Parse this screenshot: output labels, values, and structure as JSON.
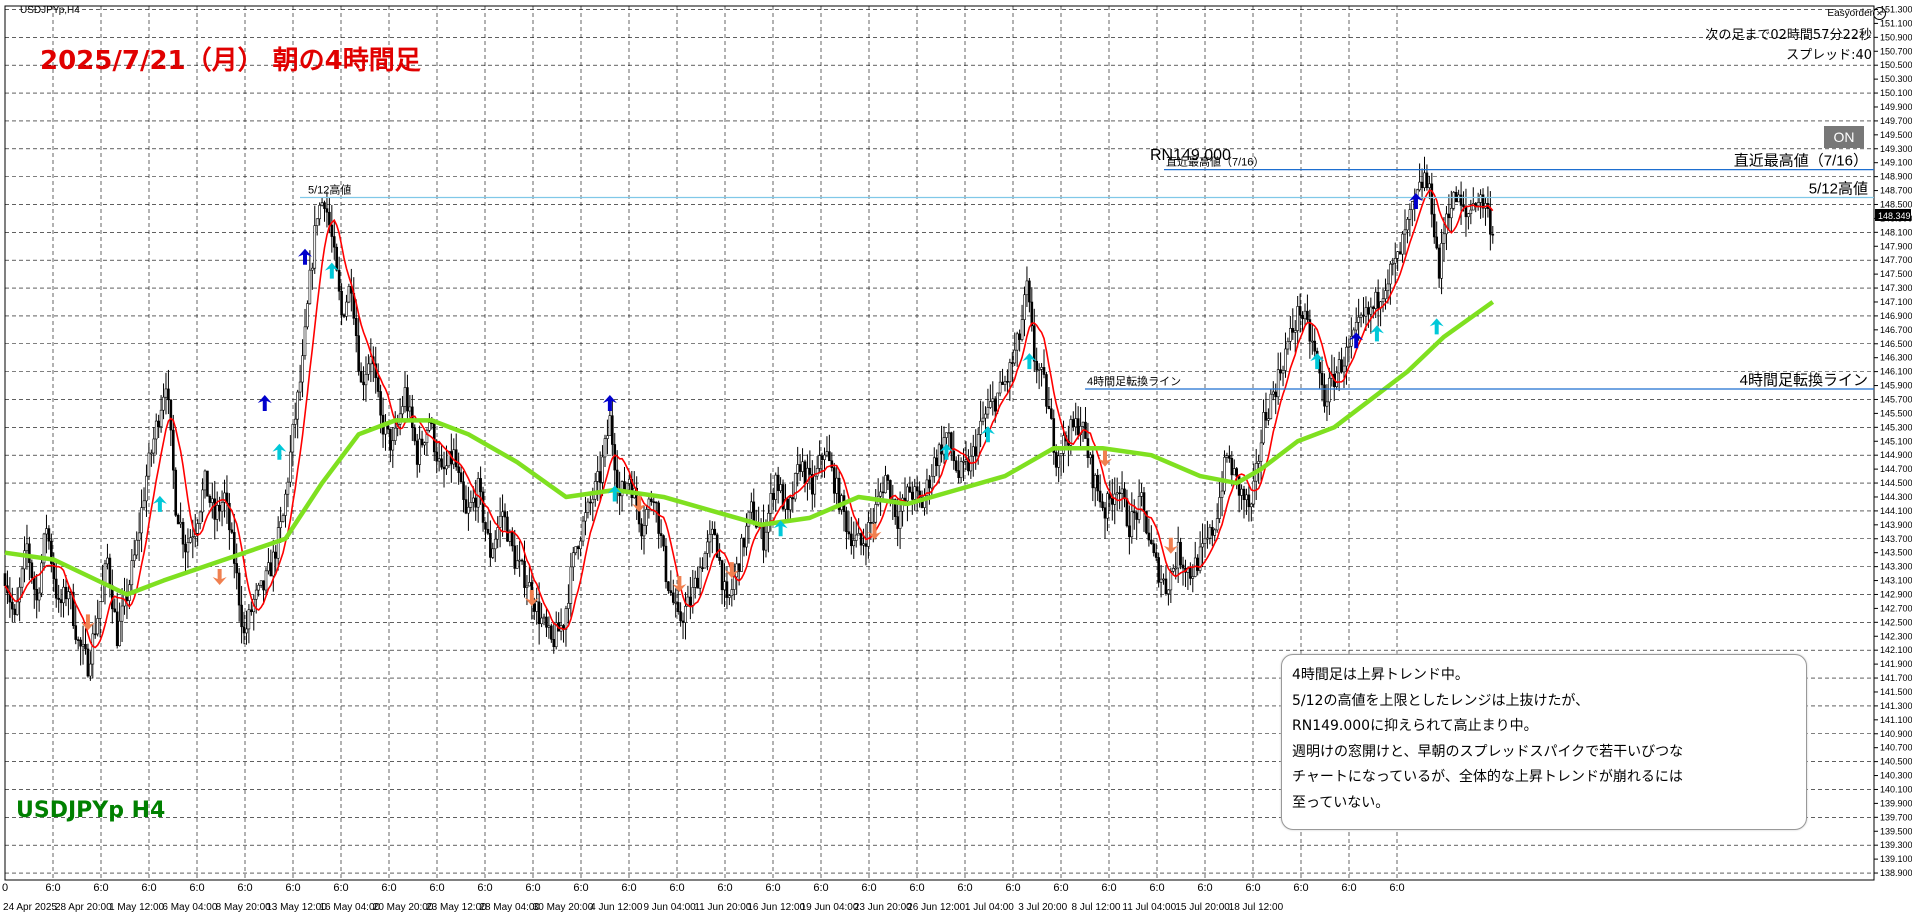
{
  "window": {
    "title": "USDJPYp,H4"
  },
  "heading": "2025/7/21（月） 朝の4時間足",
  "symbol_label": "USDJPYp H4",
  "ea_panel": {
    "name": "Easyorder",
    "countdown": "次の足まで02時間57分22秒",
    "spread": "スプレッド:40",
    "on_button": "ON"
  },
  "note": {
    "lines": [
      "4時間足は上昇トレンド中。",
      "5/12の高値を上限としたレンジは上抜けたが、",
      "RN149.000に抑えられて高止まり中。",
      "週明けの窓開けと、早朝のスプレッドスパイクで若干いびつな",
      "チャートになっているが、全体的な上昇トレンドが崩れるには",
      "至っていない。"
    ]
  },
  "colors": {
    "background": "#ffffff",
    "grid": "#000000",
    "candle": "#000000",
    "fast_ma": "#ff0000",
    "slow_ma": "#7fe020",
    "line_blue": "#1e6fd0",
    "line_cyan": "#80c8e8",
    "up_arrow": "#0000cc",
    "cyan_arrow": "#00c8d8",
    "orange_arrow": "#f08050"
  },
  "chart_data": {
    "type": "candlestick",
    "symbol": "USDJPYp",
    "timeframe": "H4",
    "y_ticks": [
      "151.300",
      "151.100",
      "150.900",
      "150.700",
      "150.500",
      "150.300",
      "150.100",
      "149.900",
      "149.700",
      "149.500",
      "149.300",
      "149.100",
      "148.900",
      "148.700",
      "148.500",
      "148.300",
      "148.100",
      "147.900",
      "147.700",
      "147.500",
      "147.300",
      "147.100",
      "146.900",
      "146.700",
      "146.500",
      "146.300",
      "146.100",
      "145.900",
      "145.700",
      "145.500",
      "145.300",
      "145.100",
      "144.900",
      "144.700",
      "144.500",
      "144.300",
      "144.100",
      "143.900",
      "143.700",
      "143.500",
      "143.300",
      "143.100",
      "142.900",
      "142.700",
      "142.500",
      "142.300",
      "142.100",
      "141.900",
      "141.700",
      "141.500",
      "141.300",
      "141.100",
      "140.900",
      "140.700",
      "140.500",
      "140.300",
      "140.100",
      "139.900",
      "139.700",
      "139.500",
      "139.300",
      "139.100",
      "138.900"
    ],
    "current_price": "148.349",
    "ylim": [
      138.8,
      151.35
    ],
    "x_date_labels": [
      "24 Apr 2025",
      "28 Apr 20:00",
      "1 May 12:00",
      "6 May 04:00",
      "8 May 20:00",
      "13 May 12:00",
      "16 May 04:00",
      "20 May 20:00",
      "23 May 12:00",
      "28 May 04:00",
      "30 May 20:00",
      "4 Jun 12:00",
      "9 Jun 04:00",
      "11 Jun 20:00",
      "16 Jun 12:00",
      "19 Jun 04:00",
      "23 Jun 20:00",
      "26 Jun 12:00",
      "1 Jul 04:00",
      "3 Jul 20:00",
      "8 Jul 12:00",
      "11 Jul 04:00",
      "15 Jul 20:00",
      "18 Jul 12:00"
    ],
    "x_time_labels": [
      "0",
      "6:0",
      "6:0",
      "6:0",
      "6:0",
      "6:0",
      "6:0",
      "6:0",
      "6:0",
      "6:0",
      "6:0",
      "6:0",
      "6:0",
      "6:0",
      "6:0",
      "6:0",
      "6:0",
      "6:0",
      "6:0",
      "6:0",
      "6:0",
      "6:0",
      "6:0",
      "6:0",
      "6:0",
      "6:0",
      "6:0",
      "6:0",
      "6:0",
      "6:0"
    ],
    "levels": [
      {
        "name": "直近最高値（7/16）",
        "price": 149.0,
        "color": "#1e6fd0",
        "left_label": "直近最高値（7/16）"
      },
      {
        "name": "5/12高値",
        "price": 148.6,
        "color": "#80c8e8",
        "left_label": "5/12高値"
      },
      {
        "name": "4時間足転換ライン",
        "price": 145.85,
        "color": "#1e6fd0",
        "left_label": "4時間足転換ライン"
      }
    ],
    "annotations": [
      {
        "text": "RN149.000",
        "price": 149.05
      }
    ],
    "close_path": [
      [
        0,
        143.2
      ],
      [
        8,
        142.5
      ],
      [
        18,
        143.6
      ],
      [
        26,
        142.8
      ],
      [
        34,
        143.9
      ],
      [
        44,
        142.7
      ],
      [
        52,
        143.0
      ],
      [
        60,
        142.2
      ],
      [
        68,
        141.9
      ],
      [
        76,
        142.6
      ],
      [
        84,
        143.4
      ],
      [
        92,
        142.3
      ],
      [
        100,
        142.9
      ],
      [
        108,
        143.6
      ],
      [
        116,
        144.6
      ],
      [
        124,
        145.3
      ],
      [
        132,
        146.0
      ],
      [
        140,
        144.2
      ],
      [
        148,
        143.6
      ],
      [
        156,
        143.9
      ],
      [
        164,
        144.5
      ],
      [
        172,
        144.0
      ],
      [
        180,
        144.3
      ],
      [
        188,
        143.4
      ],
      [
        196,
        142.3
      ],
      [
        204,
        142.8
      ],
      [
        212,
        143.0
      ],
      [
        220,
        143.4
      ],
      [
        228,
        144.0
      ],
      [
        236,
        145.2
      ],
      [
        244,
        146.2
      ],
      [
        250,
        147.4
      ],
      [
        256,
        148.4
      ],
      [
        262,
        148.6
      ],
      [
        268,
        148.0
      ],
      [
        276,
        146.9
      ],
      [
        284,
        147.4
      ],
      [
        292,
        145.9
      ],
      [
        300,
        146.4
      ],
      [
        308,
        145.4
      ],
      [
        318,
        145.0
      ],
      [
        328,
        145.8
      ],
      [
        338,
        144.9
      ],
      [
        348,
        145.4
      ],
      [
        358,
        144.6
      ],
      [
        368,
        144.9
      ],
      [
        378,
        144.0
      ],
      [
        388,
        144.4
      ],
      [
        398,
        143.5
      ],
      [
        408,
        144.1
      ],
      [
        418,
        143.4
      ],
      [
        428,
        143.1
      ],
      [
        438,
        142.6
      ],
      [
        448,
        142.2
      ],
      [
        458,
        142.5
      ],
      [
        468,
        143.6
      ],
      [
        478,
        144.1
      ],
      [
        488,
        144.6
      ],
      [
        496,
        145.4
      ],
      [
        504,
        144.3
      ],
      [
        512,
        144.6
      ],
      [
        522,
        143.9
      ],
      [
        532,
        144.4
      ],
      [
        542,
        143.2
      ],
      [
        552,
        142.5
      ],
      [
        562,
        142.8
      ],
      [
        572,
        143.4
      ],
      [
        582,
        143.8
      ],
      [
        592,
        142.7
      ],
      [
        602,
        143.4
      ],
      [
        612,
        144.1
      ],
      [
        622,
        143.7
      ],
      [
        632,
        144.6
      ],
      [
        642,
        144.0
      ],
      [
        652,
        144.8
      ],
      [
        662,
        144.4
      ],
      [
        672,
        145.0
      ],
      [
        682,
        144.4
      ],
      [
        692,
        143.8
      ],
      [
        702,
        143.6
      ],
      [
        712,
        144.0
      ],
      [
        722,
        144.6
      ],
      [
        732,
        144.0
      ],
      [
        742,
        144.4
      ],
      [
        752,
        144.2
      ],
      [
        762,
        144.8
      ],
      [
        772,
        145.2
      ],
      [
        782,
        144.6
      ],
      [
        792,
        144.8
      ],
      [
        802,
        145.4
      ],
      [
        812,
        145.7
      ],
      [
        822,
        146.0
      ],
      [
        832,
        146.6
      ],
      [
        838,
        147.3
      ],
      [
        844,
        146.3
      ],
      [
        852,
        145.9
      ],
      [
        862,
        144.9
      ],
      [
        872,
        145.2
      ],
      [
        882,
        145.4
      ],
      [
        892,
        144.6
      ],
      [
        902,
        144.1
      ],
      [
        912,
        144.5
      ],
      [
        922,
        143.9
      ],
      [
        932,
        144.2
      ],
      [
        942,
        143.4
      ],
      [
        952,
        143.0
      ],
      [
        962,
        143.5
      ],
      [
        972,
        143.2
      ],
      [
        982,
        143.5
      ],
      [
        992,
        143.9
      ],
      [
        1002,
        144.9
      ],
      [
        1012,
        144.4
      ],
      [
        1022,
        144.1
      ],
      [
        1032,
        145.4
      ],
      [
        1042,
        145.9
      ],
      [
        1052,
        146.5
      ],
      [
        1062,
        147.0
      ],
      [
        1072,
        146.5
      ],
      [
        1082,
        145.7
      ],
      [
        1092,
        146.1
      ],
      [
        1102,
        146.4
      ],
      [
        1112,
        146.8
      ],
      [
        1122,
        147.0
      ],
      [
        1132,
        147.4
      ],
      [
        1142,
        147.7
      ],
      [
        1152,
        148.3
      ],
      [
        1158,
        148.6
      ],
      [
        1164,
        148.9
      ],
      [
        1170,
        148.5
      ],
      [
        1176,
        147.5
      ],
      [
        1182,
        148.4
      ],
      [
        1190,
        148.6
      ],
      [
        1198,
        148.3
      ],
      [
        1206,
        148.6
      ],
      [
        1214,
        148.5
      ],
      [
        1220,
        148.1
      ]
    ],
    "slow_ma_path": [
      [
        0,
        143.5
      ],
      [
        40,
        143.4
      ],
      [
        100,
        142.9
      ],
      [
        130,
        143.1
      ],
      [
        180,
        143.4
      ],
      [
        230,
        143.7
      ],
      [
        260,
        144.5
      ],
      [
        290,
        145.2
      ],
      [
        320,
        145.4
      ],
      [
        350,
        145.4
      ],
      [
        380,
        145.2
      ],
      [
        420,
        144.8
      ],
      [
        460,
        144.3
      ],
      [
        500,
        144.4
      ],
      [
        540,
        144.3
      ],
      [
        580,
        144.1
      ],
      [
        620,
        143.9
      ],
      [
        660,
        144.0
      ],
      [
        700,
        144.3
      ],
      [
        740,
        144.2
      ],
      [
        780,
        144.4
      ],
      [
        820,
        144.6
      ],
      [
        860,
        145.0
      ],
      [
        900,
        145.0
      ],
      [
        940,
        144.9
      ],
      [
        980,
        144.6
      ],
      [
        1010,
        144.5
      ],
      [
        1030,
        144.7
      ],
      [
        1060,
        145.1
      ],
      [
        1090,
        145.3
      ],
      [
        1120,
        145.7
      ],
      [
        1150,
        146.1
      ],
      [
        1180,
        146.6
      ],
      [
        1220,
        147.1
      ]
    ],
    "signals": [
      {
        "type": "up",
        "x": 213,
        "price": 145.65
      },
      {
        "type": "up",
        "x": 246,
        "price": 147.75
      },
      {
        "type": "up",
        "x": 496,
        "price": 145.65
      },
      {
        "type": "up",
        "x": 1108,
        "price": 146.55
      },
      {
        "type": "up",
        "x": 1157,
        "price": 148.55
      },
      {
        "type": "cyan",
        "x": 127,
        "price": 144.2
      },
      {
        "type": "cyan",
        "x": 225,
        "price": 144.95
      },
      {
        "type": "cyan",
        "x": 268,
        "price": 147.55
      },
      {
        "type": "cyan",
        "x": 500,
        "price": 144.35
      },
      {
        "type": "cyan",
        "x": 636,
        "price": 143.85
      },
      {
        "type": "cyan",
        "x": 772,
        "price": 144.95
      },
      {
        "type": "cyan",
        "x": 806,
        "price": 145.2
      },
      {
        "type": "cyan",
        "x": 840,
        "price": 146.25
      },
      {
        "type": "cyan",
        "x": 1076,
        "price": 146.25
      },
      {
        "type": "cyan",
        "x": 1125,
        "price": 146.65
      },
      {
        "type": "cyan",
        "x": 1174,
        "price": 146.75
      },
      {
        "type": "down",
        "x": 68,
        "price": 142.5
      },
      {
        "type": "down",
        "x": 176,
        "price": 143.15
      },
      {
        "type": "down",
        "x": 432,
        "price": 142.85
      },
      {
        "type": "down",
        "x": 520,
        "price": 144.2
      },
      {
        "type": "down",
        "x": 553,
        "price": 143.05
      },
      {
        "type": "down",
        "x": 596,
        "price": 143.25
      },
      {
        "type": "down",
        "x": 713,
        "price": 143.8
      },
      {
        "type": "down",
        "x": 902,
        "price": 144.85
      },
      {
        "type": "down",
        "x": 956,
        "price": 143.6
      }
    ]
  }
}
